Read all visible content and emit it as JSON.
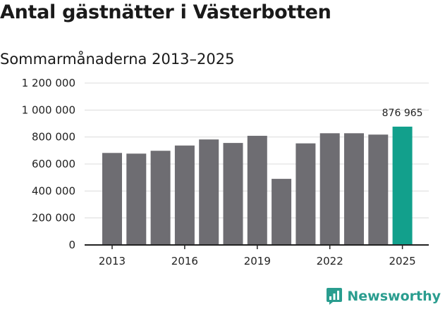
{
  "title": "Antal gästnätter i Västerbotten",
  "subtitle": "Sommarmånaderna 2013–2025",
  "brand": {
    "name": "Newsworthy",
    "icon": "newsworthy-logo-icon",
    "color": "#2a9d8f"
  },
  "colors": {
    "bar": "#6e6d72",
    "highlight": "#12a08c",
    "grid": "#dcdcdc",
    "axis": "#222222"
  },
  "chart_data": {
    "type": "bar",
    "title": "Antal gästnätter i Västerbotten",
    "subtitle": "Sommarmånaderna 2013–2025",
    "xlabel": "",
    "ylabel": "",
    "categories": [
      "2013",
      "2014",
      "2015",
      "2016",
      "2017",
      "2018",
      "2019",
      "2020",
      "2021",
      "2022",
      "2023",
      "2024",
      "2025"
    ],
    "values": [
      682000,
      677000,
      698000,
      737000,
      782000,
      756000,
      809000,
      490000,
      753000,
      828000,
      828000,
      818000,
      876965
    ],
    "highlight_category": "2025",
    "data_labels": [
      {
        "category": "2025",
        "text": "876 965"
      }
    ],
    "x_tick_labels": [
      "2013",
      "2016",
      "2019",
      "2022",
      "2025"
    ],
    "y_ticks": [
      0,
      200000,
      400000,
      600000,
      800000,
      1000000,
      1200000
    ],
    "y_tick_labels": [
      "0",
      "200 000",
      "400 000",
      "600 000",
      "800 000",
      "1 000 000",
      "1 200 000"
    ],
    "ylim": [
      0,
      1200000
    ],
    "grid": true,
    "legend": "none"
  }
}
